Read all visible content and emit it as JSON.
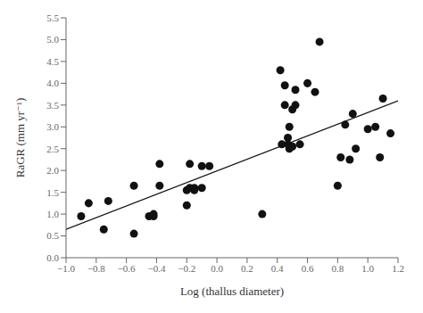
{
  "chart_data": {
    "type": "scatter",
    "xlabel": "Log (thallus diameter)",
    "ylabel": "RaGR (mm yr⁻¹)",
    "xlim": [
      -1.0,
      1.2
    ],
    "ylim": [
      0.0,
      5.5
    ],
    "xticks": [
      {
        "value": -1.0,
        "label": "−1.0"
      },
      {
        "value": -0.8,
        "label": "−0.8"
      },
      {
        "value": -0.6,
        "label": "−0.6"
      },
      {
        "value": -0.4,
        "label": "−0.4"
      },
      {
        "value": -0.2,
        "label": "−0.2"
      },
      {
        "value": 0.0,
        "label": "0.0"
      },
      {
        "value": 0.2,
        "label": "0.2"
      },
      {
        "value": 0.4,
        "label": "0.4"
      },
      {
        "value": 0.6,
        "label": "0.6"
      },
      {
        "value": 0.8,
        "label": "0.8"
      },
      {
        "value": 1.0,
        "label": "1.0"
      },
      {
        "value": 1.2,
        "label": "1.2"
      }
    ],
    "yticks": [
      {
        "value": 0.0,
        "label": "0.0"
      },
      {
        "value": 0.5,
        "label": "0.5"
      },
      {
        "value": 1.0,
        "label": "1.0"
      },
      {
        "value": 1.5,
        "label": "1.5"
      },
      {
        "value": 2.0,
        "label": "2.0"
      },
      {
        "value": 2.5,
        "label": "2.5"
      },
      {
        "value": 3.0,
        "label": "3.0"
      },
      {
        "value": 3.5,
        "label": "3.5"
      },
      {
        "value": 4.0,
        "label": "4.0"
      },
      {
        "value": 4.5,
        "label": "4.5"
      },
      {
        "value": 5.0,
        "label": "5.0"
      },
      {
        "value": 5.5,
        "label": "5.5"
      }
    ],
    "series": [
      {
        "type": "scatter",
        "color": "#111111",
        "x": [
          -0.9,
          -0.85,
          -0.75,
          -0.72,
          -0.55,
          -0.55,
          -0.45,
          -0.42,
          -0.42,
          -0.38,
          -0.38,
          -0.2,
          -0.2,
          -0.18,
          -0.18,
          -0.15,
          -0.15,
          -0.1,
          -0.1,
          -0.05,
          0.3,
          0.42,
          0.43,
          0.45,
          0.45,
          0.47,
          0.47,
          0.48,
          0.48,
          0.5,
          0.5,
          0.52,
          0.52,
          0.55,
          0.6,
          0.65,
          0.68,
          0.8,
          0.82,
          0.85,
          0.88,
          0.9,
          0.92,
          1.0,
          1.05,
          1.08,
          1.1,
          1.15
        ],
        "values": [
          0.95,
          1.25,
          0.65,
          1.3,
          0.55,
          1.65,
          0.95,
          0.95,
          1.0,
          1.65,
          2.15,
          1.2,
          1.55,
          1.6,
          2.15,
          1.55,
          1.6,
          1.6,
          2.1,
          2.1,
          1.0,
          4.3,
          2.6,
          3.5,
          3.95,
          2.6,
          2.75,
          2.5,
          3.0,
          2.55,
          3.4,
          3.5,
          3.85,
          2.6,
          4.0,
          3.8,
          4.95,
          1.65,
          2.3,
          3.05,
          2.25,
          3.3,
          2.5,
          2.95,
          3.0,
          2.3,
          3.65,
          2.85
        ]
      },
      {
        "type": "line",
        "color": "#111111",
        "x": [
          -1.0,
          1.2
        ],
        "values": [
          0.65,
          3.598
        ]
      }
    ]
  }
}
